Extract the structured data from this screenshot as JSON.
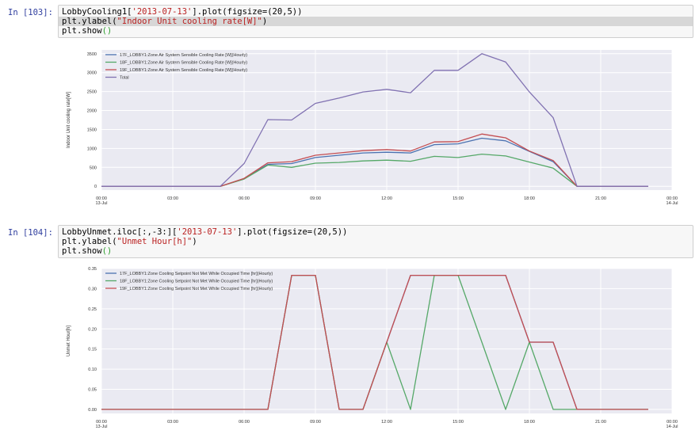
{
  "cells": [
    {
      "prompt": "In [103]:",
      "code": [
        [
          "LobbyCooling1[",
          "'2013-07-13'",
          "].plot(figsize=(20,5))"
        ],
        [
          "plt.ylabel(",
          "\"Indoor Unit cooling rate[W]\"",
          ")"
        ],
        [
          "plt.show",
          "()",
          ""
        ]
      ]
    },
    {
      "prompt": "In [104]:",
      "code": [
        [
          "LobbyUnmet.iloc[:,-3:][",
          "'2013-07-13'",
          "].plot(figsize=(20,5))"
        ],
        [
          "plt.ylabel(",
          "\"Unmet Hour[h]\"",
          ")"
        ],
        [
          "plt.show",
          "()",
          ""
        ]
      ]
    }
  ],
  "chart_data": [
    {
      "type": "line",
      "title": "",
      "xlabel": "",
      "ylabel": "Indoor Unit cooling rate[W]",
      "x": [
        0,
        1,
        2,
        3,
        4,
        5,
        6,
        7,
        8,
        9,
        10,
        11,
        12,
        13,
        14,
        15,
        16,
        17,
        18,
        19,
        20,
        21,
        22,
        23
      ],
      "xlim": [
        0,
        24
      ],
      "ylim": [
        -100,
        3600
      ],
      "yticks": [
        0,
        500,
        1000,
        1500,
        2000,
        2500,
        3000,
        3500
      ],
      "ytick_labels": [
        "0",
        "500",
        "1000",
        "1500",
        "2000",
        "2500",
        "3000",
        "3500"
      ],
      "xtick_pos": [
        0,
        3,
        6,
        9,
        12,
        15,
        18,
        21,
        24
      ],
      "xtick_labels": [
        "00:00",
        "03:00",
        "06:00",
        "09:00",
        "12:00",
        "15:00",
        "18:00",
        "21:00",
        "00:00"
      ],
      "xtick_sub": [
        "13-Jul",
        "",
        "",
        "",
        "",
        "",
        "",
        "",
        "14-Jul"
      ],
      "grid": true,
      "legend": "top-left",
      "series": [
        {
          "name": "17F_LOBBY1:Zone Air System Sensible Cooling Rate [W](Hourly)",
          "color": "#4c72b0",
          "values": [
            0,
            0,
            0,
            0,
            0,
            0,
            200,
            580,
            600,
            760,
            820,
            880,
            900,
            880,
            1100,
            1120,
            1270,
            1200,
            920,
            650,
            0,
            0,
            0,
            0
          ]
        },
        {
          "name": "18F_LOBBY1:Zone Air System Sensible Cooling Rate [W](Hourly)",
          "color": "#55a868",
          "values": [
            0,
            0,
            0,
            0,
            0,
            0,
            190,
            560,
            500,
            610,
            630,
            670,
            690,
            660,
            790,
            760,
            850,
            800,
            640,
            480,
            0,
            0,
            0,
            0
          ]
        },
        {
          "name": "19F_LOBBY1:Zone Air System Sensible Cooling Rate [W](Hourly)",
          "color": "#c44e52",
          "values": [
            0,
            0,
            0,
            0,
            0,
            0,
            210,
            620,
            650,
            820,
            880,
            940,
            970,
            930,
            1170,
            1180,
            1380,
            1280,
            930,
            680,
            0,
            0,
            0,
            0
          ]
        },
        {
          "name": "Total",
          "color": "#8172b2",
          "values": [
            0,
            0,
            0,
            0,
            0,
            0,
            600,
            1760,
            1750,
            2190,
            2330,
            2490,
            2560,
            2470,
            3060,
            3060,
            3500,
            3280,
            2490,
            1810,
            0,
            0,
            0,
            0
          ]
        }
      ]
    },
    {
      "type": "line",
      "title": "",
      "xlabel": "",
      "ylabel": "Unmet Hour[h]",
      "x": [
        0,
        1,
        2,
        3,
        4,
        5,
        6,
        7,
        8,
        9,
        10,
        11,
        12,
        13,
        14,
        15,
        16,
        17,
        18,
        19,
        20,
        21,
        22,
        23
      ],
      "xlim": [
        0,
        24
      ],
      "ylim": [
        -0.01,
        0.35
      ],
      "yticks": [
        0,
        0.05,
        0.1,
        0.15,
        0.2,
        0.25,
        0.3,
        0.35
      ],
      "ytick_labels": [
        "0.00",
        "0.05",
        "0.10",
        "0.15",
        "0.20",
        "0.25",
        "0.30",
        "0.35"
      ],
      "xtick_pos": [
        0,
        3,
        6,
        9,
        12,
        15,
        18,
        21,
        24
      ],
      "xtick_labels": [
        "00:00",
        "03:00",
        "06:00",
        "09:00",
        "12:00",
        "15:00",
        "18:00",
        "21:00",
        "00:00"
      ],
      "xtick_sub": [
        "13-Jul",
        "",
        "",
        "",
        "",
        "",
        "",
        "",
        "14-Jul"
      ],
      "grid": true,
      "legend": "top-left",
      "series": [
        {
          "name": "17F_LOBBY1:Zone Cooling Setpoint Not Met While Occupied Time [hr](Hourly)",
          "color": "#4c72b0",
          "values": [
            0,
            0,
            0,
            0,
            0,
            0,
            0,
            0,
            0.333,
            0.333,
            0,
            0,
            0.167,
            0.333,
            0.333,
            0.333,
            0.333,
            0.333,
            0.167,
            0.167,
            0,
            0,
            0,
            0
          ]
        },
        {
          "name": "18F_LOBBY1:Zone Cooling Setpoint Not Met While Occupied Time [hr](Hourly)",
          "color": "#55a868",
          "values": [
            0,
            0,
            0,
            0,
            0,
            0,
            0,
            0,
            0.333,
            0.333,
            0,
            0,
            0.167,
            0,
            0.333,
            0.333,
            0.167,
            0,
            0.167,
            0,
            0,
            0,
            0,
            0
          ]
        },
        {
          "name": "19F_LOBBY1:Zone Cooling Setpoint Not Met While Occupied Time [hr](Hourly)",
          "color": "#c44e52",
          "values": [
            0,
            0,
            0,
            0,
            0,
            0,
            0,
            0,
            0.333,
            0.333,
            0,
            0,
            0.167,
            0.333,
            0.333,
            0.333,
            0.333,
            0.333,
            0.167,
            0.167,
            0,
            0,
            0,
            0
          ]
        }
      ]
    }
  ]
}
